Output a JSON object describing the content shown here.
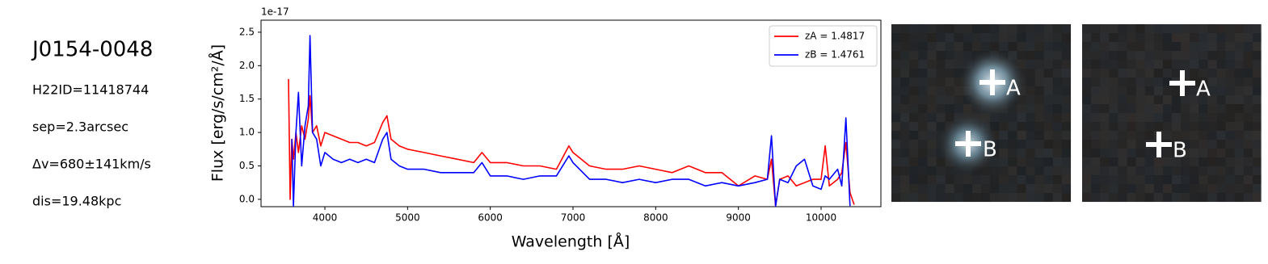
{
  "info": {
    "title": "J0154-0048",
    "lines": [
      "H22ID=11418744",
      "sep=2.3arcsec",
      "Δv=680±141km/s",
      "dis=19.48kpc"
    ]
  },
  "chart_data": {
    "type": "line",
    "x_label": "Wavelength [Å]",
    "y_label": "Flux [erg/s/cm²/Å]",
    "offset_label": "1e-17",
    "x": [
      3560,
      3580,
      3600,
      3620,
      3650,
      3680,
      3720,
      3760,
      3800,
      3820,
      3850,
      3900,
      3950,
      4000,
      4100,
      4200,
      4300,
      4400,
      4500,
      4600,
      4700,
      4750,
      4800,
      4900,
      5000,
      5200,
      5400,
      5600,
      5800,
      5900,
      6000,
      6200,
      6400,
      6600,
      6800,
      6950,
      7000,
      7200,
      7400,
      7600,
      7800,
      8000,
      8200,
      8400,
      8600,
      8800,
      9000,
      9200,
      9350,
      9400,
      9450,
      9500,
      9600,
      9700,
      9800,
      9900,
      10000,
      10050,
      10100,
      10200,
      10250,
      10300,
      10350,
      10400
    ],
    "series": [
      {
        "name": "zA = 1.4817",
        "color": "#ff0000",
        "values": [
          1.8,
          0.0,
          0.9,
          0.6,
          1.0,
          0.7,
          1.1,
          0.9,
          1.2,
          1.55,
          1.0,
          1.1,
          0.8,
          1.0,
          0.95,
          0.9,
          0.85,
          0.85,
          0.8,
          0.85,
          1.15,
          1.25,
          0.9,
          0.8,
          0.75,
          0.7,
          0.65,
          0.6,
          0.55,
          0.7,
          0.55,
          0.55,
          0.5,
          0.5,
          0.45,
          0.8,
          0.7,
          0.5,
          0.45,
          0.45,
          0.5,
          0.45,
          0.4,
          0.5,
          0.4,
          0.4,
          0.2,
          0.35,
          0.3,
          0.6,
          -0.1,
          0.3,
          0.35,
          0.2,
          0.25,
          0.3,
          0.3,
          0.8,
          0.2,
          0.3,
          0.4,
          0.85,
          0.1,
          -0.08
        ]
      },
      {
        "name": "zB = 1.4761",
        "color": "#0000ff",
        "values": [
          null,
          null,
          0.9,
          -0.1,
          1.0,
          1.6,
          0.5,
          1.1,
          1.4,
          2.45,
          1.0,
          0.9,
          0.5,
          0.7,
          0.6,
          0.55,
          0.6,
          0.55,
          0.6,
          0.55,
          0.9,
          1.0,
          0.6,
          0.5,
          0.45,
          0.45,
          0.4,
          0.4,
          0.4,
          0.55,
          0.35,
          0.35,
          0.3,
          0.35,
          0.35,
          0.65,
          0.55,
          0.3,
          0.3,
          0.25,
          0.3,
          0.25,
          0.3,
          0.3,
          0.2,
          0.25,
          0.2,
          0.25,
          0.3,
          0.95,
          -0.1,
          0.3,
          0.25,
          0.5,
          0.6,
          0.2,
          0.15,
          0.35,
          0.3,
          0.45,
          0.2,
          1.22,
          -0.1,
          null
        ]
      }
    ],
    "xlim": [
      3228,
      10723
    ],
    "ylim": [
      -0.11,
      2.68
    ],
    "xticks": [
      4000,
      5000,
      6000,
      7000,
      8000,
      9000,
      10000
    ],
    "yticks": [
      {
        "value": 0,
        "label": "0.0"
      },
      0.5,
      {
        "value": 1,
        "label": "1.0"
      },
      1.5,
      {
        "value": 2,
        "label": "2.0"
      },
      2.5
    ],
    "grid": false,
    "legend": "upper right"
  },
  "cutouts": [
    {
      "markers": [
        "A",
        "B"
      ]
    },
    {
      "markers": [
        "A",
        "B"
      ]
    }
  ]
}
